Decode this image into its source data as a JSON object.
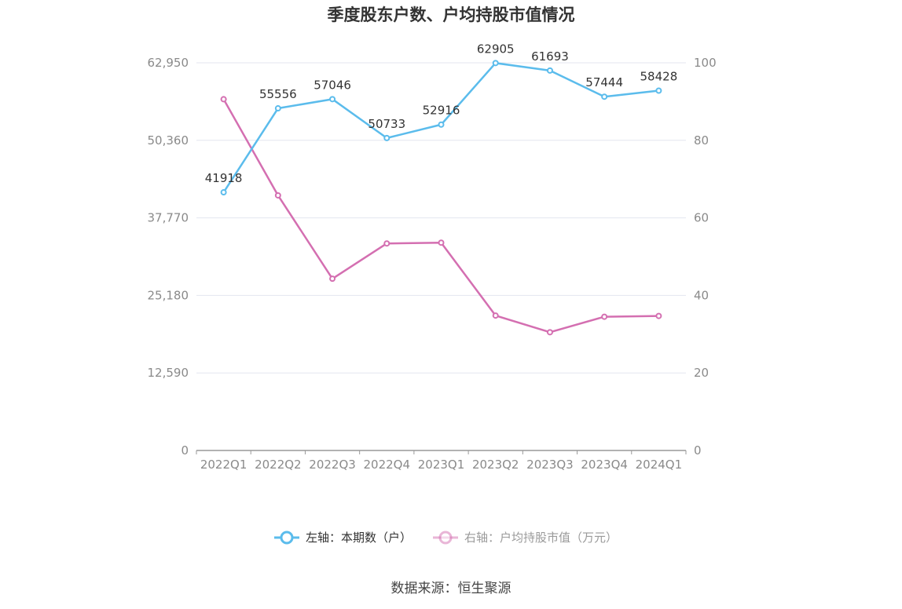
{
  "chart_data": {
    "type": "line",
    "title": "季度股东户数、户均持股市值情况",
    "categories": [
      "2022Q1",
      "2022Q2",
      "2022Q3",
      "2022Q4",
      "2023Q1",
      "2023Q2",
      "2023Q3",
      "2023Q4",
      "2024Q1"
    ],
    "left_axis": {
      "ticks": [
        "0",
        "12,590",
        "25,180",
        "37,770",
        "50,360",
        "62,950"
      ],
      "range": [
        0,
        62950
      ]
    },
    "right_axis": {
      "ticks": [
        "0",
        "20",
        "40",
        "60",
        "80",
        "100"
      ],
      "range": [
        0,
        100
      ]
    },
    "series": [
      {
        "name": "左轴：本期数（户）",
        "axis": "left",
        "color": "#5bbcec",
        "values": [
          41918,
          55556,
          57046,
          50733,
          52916,
          62905,
          61693,
          57444,
          58428
        ],
        "labels": [
          "41918",
          "55556",
          "57046",
          "50733",
          "52916",
          "62905",
          "61693",
          "57444",
          "58428"
        ]
      },
      {
        "name": "右轴：户均持股市值（万元）",
        "axis": "right",
        "color": "#d46fb1",
        "values": [
          90.6,
          65.8,
          44.3,
          53.4,
          53.6,
          34.8,
          30.5,
          34.5,
          34.7
        ]
      }
    ],
    "grid": true,
    "legend_position": "bottom",
    "source": "数据来源：恒生聚源"
  }
}
